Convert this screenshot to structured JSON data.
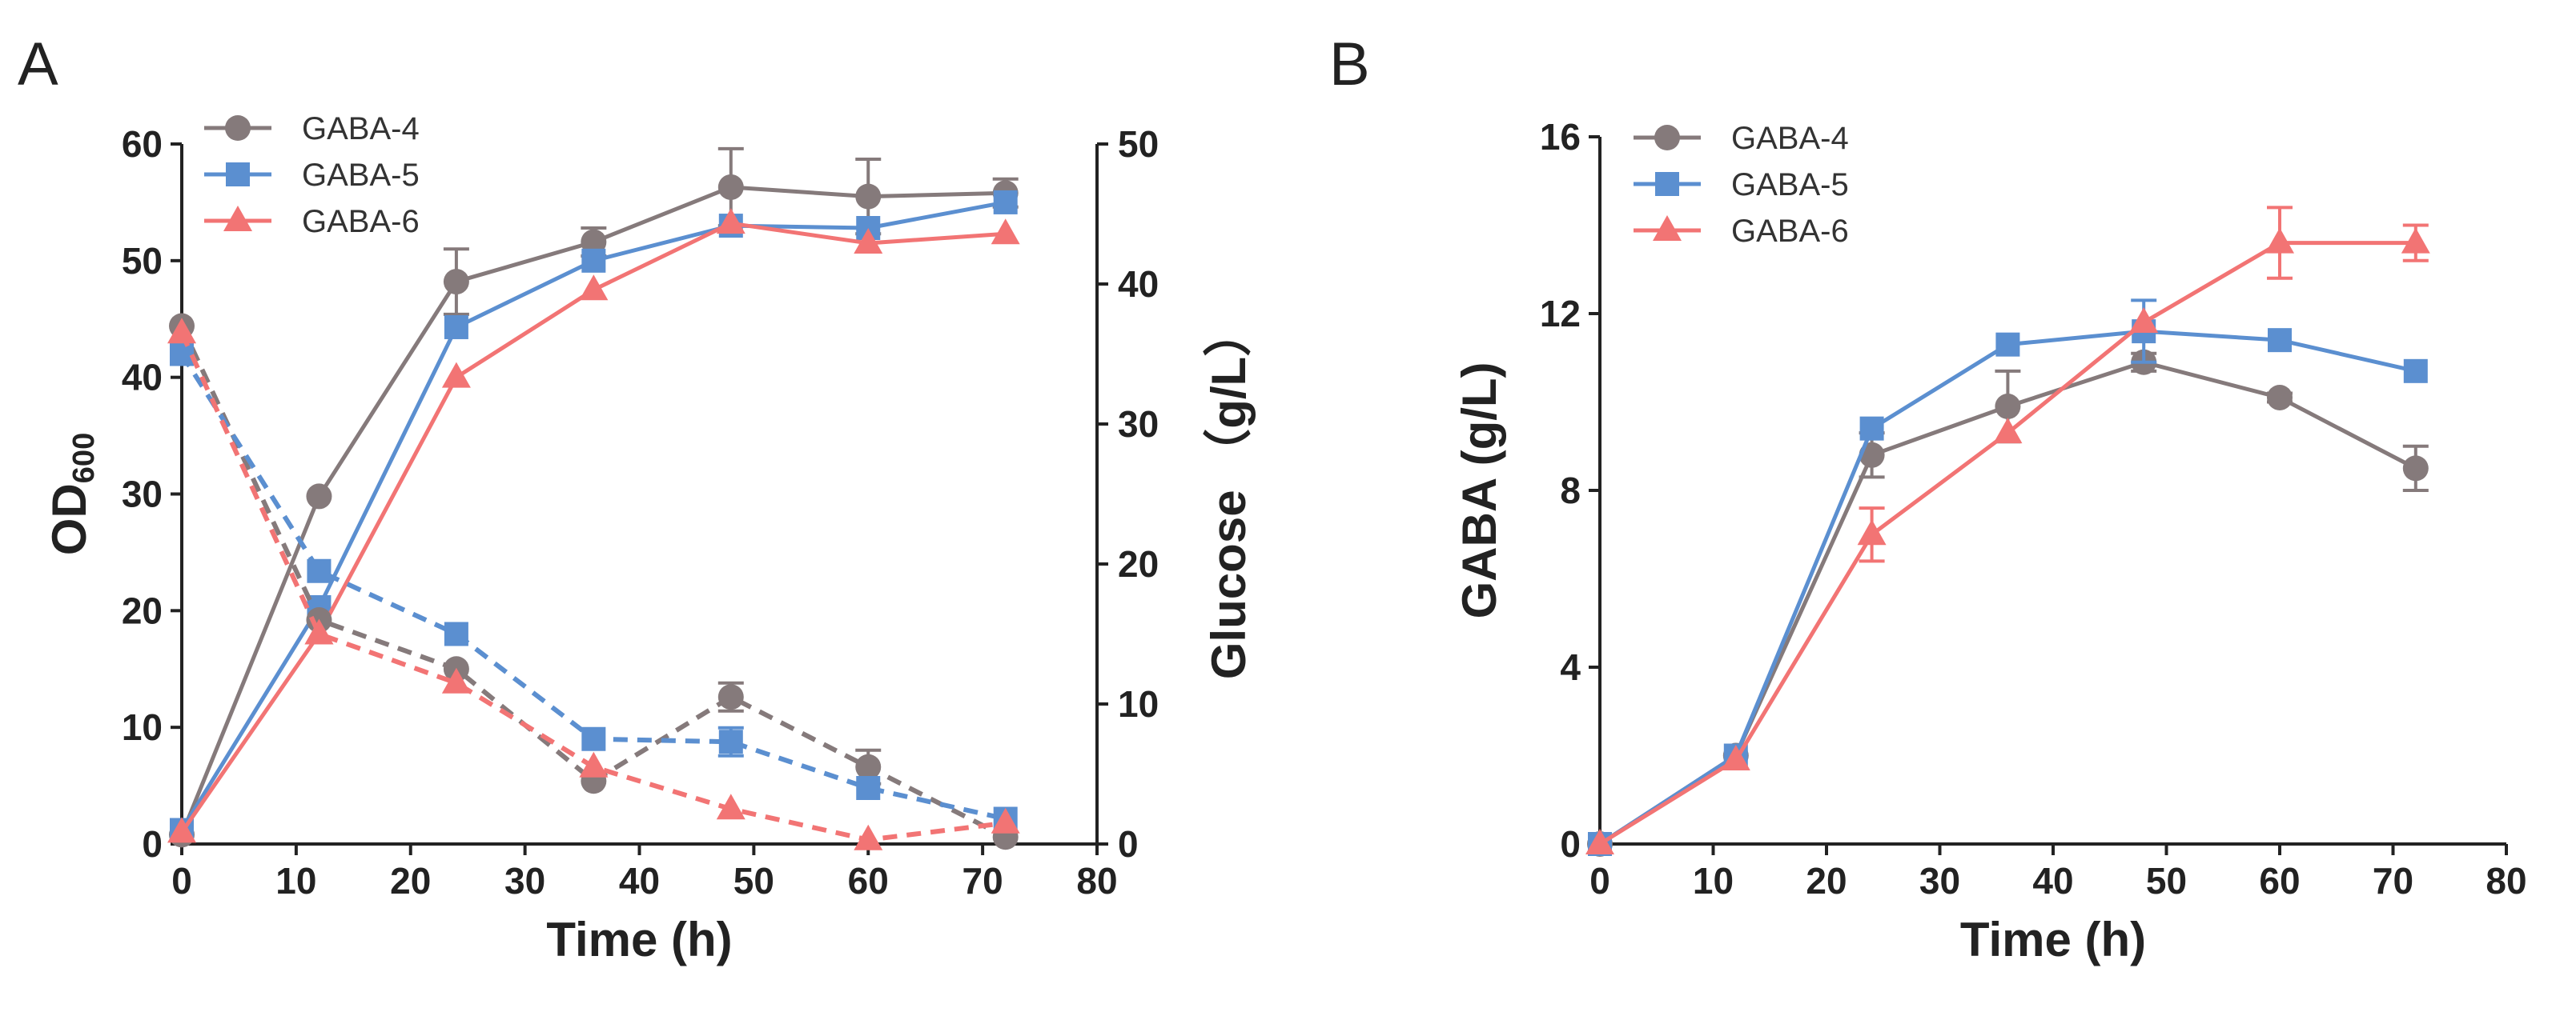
{
  "chart_data": [
    {
      "panel": "A",
      "type": "line",
      "xlabel": "Time (h)",
      "ylabel_main": "OD",
      "ylabel_sub": "600",
      "y2label": "Glucose （g/L）",
      "xlim": [
        0,
        80
      ],
      "ylim": [
        0,
        60
      ],
      "y2lim": [
        0,
        50
      ],
      "xticks": [
        "0",
        "10",
        "20",
        "30",
        "40",
        "50",
        "60",
        "70",
        "80"
      ],
      "yticks": [
        "0",
        "10",
        "20",
        "30",
        "40",
        "50",
        "60"
      ],
      "y2ticks": [
        "0",
        "10",
        "20",
        "30",
        "40",
        "50"
      ],
      "legend_position": "top-left",
      "series": [
        {
          "name": "GABA-4",
          "marker": "circle",
          "color": "#857a7b",
          "axis": "left",
          "dash": false,
          "x": [
            0,
            12,
            24,
            36,
            48,
            60,
            72
          ],
          "values": [
            0.8,
            29.8,
            48.2,
            51.6,
            56.3,
            55.5,
            55.8
          ],
          "errors": [
            0,
            0,
            2.8,
            1.2,
            3.3,
            3.2,
            1.2
          ]
        },
        {
          "name": "GABA-5",
          "marker": "square",
          "color": "#5b8fd0",
          "axis": "left",
          "dash": false,
          "x": [
            0,
            12,
            24,
            36,
            48,
            60,
            72
          ],
          "values": [
            1.2,
            20.3,
            44.3,
            50.0,
            53.0,
            52.8,
            55.0
          ],
          "errors": [
            0,
            0,
            0,
            0,
            0,
            0,
            0
          ]
        },
        {
          "name": "GABA-6",
          "marker": "triangle",
          "color": "#f27474",
          "axis": "left",
          "dash": false,
          "x": [
            0,
            12,
            24,
            36,
            48,
            60,
            72
          ],
          "values": [
            1.0,
            18.0,
            40.0,
            47.5,
            53.2,
            51.5,
            52.3
          ],
          "errors": [
            0,
            0,
            0,
            0,
            0,
            0,
            0
          ]
        },
        {
          "name": "GABA-4 glucose",
          "marker": "circle",
          "color": "#857a7b",
          "axis": "right",
          "dash": true,
          "x": [
            0,
            12,
            24,
            36,
            48,
            60,
            72
          ],
          "values": [
            37.0,
            16.0,
            12.5,
            4.5,
            10.5,
            5.5,
            0.5
          ],
          "errors": [
            0,
            0,
            0,
            0,
            1.0,
            1.2,
            0
          ]
        },
        {
          "name": "GABA-5 glucose",
          "marker": "square",
          "color": "#5b8fd0",
          "axis": "right",
          "dash": true,
          "x": [
            0,
            12,
            24,
            36,
            48,
            60,
            72
          ],
          "values": [
            35.0,
            19.5,
            15.0,
            7.5,
            7.3,
            4.0,
            1.8
          ],
          "errors": [
            0,
            0,
            0,
            0,
            1.0,
            0,
            0
          ]
        },
        {
          "name": "GABA-6 glucose",
          "marker": "triangle",
          "color": "#f27474",
          "axis": "right",
          "dash": true,
          "x": [
            0,
            12,
            24,
            36,
            48,
            60,
            72
          ],
          "values": [
            36.5,
            15.0,
            11.5,
            5.5,
            2.5,
            0.3,
            1.5
          ],
          "errors": [
            0,
            0,
            0,
            0,
            0,
            0,
            0
          ]
        }
      ]
    },
    {
      "panel": "B",
      "type": "line",
      "xlabel": "Time (h)",
      "ylabel": "GABA (g/L)",
      "xlim": [
        0,
        80
      ],
      "ylim": [
        0,
        16
      ],
      "xticks": [
        "0",
        "10",
        "20",
        "30",
        "40",
        "50",
        "60",
        "70",
        "80"
      ],
      "yticks": [
        "0",
        "4",
        "8",
        "12",
        "16"
      ],
      "legend_position": "top-left",
      "series": [
        {
          "name": "GABA-4",
          "marker": "circle",
          "color": "#857a7b",
          "dash": false,
          "x": [
            0,
            12,
            24,
            36,
            48,
            60,
            72
          ],
          "values": [
            0,
            2.0,
            8.8,
            9.9,
            10.9,
            10.1,
            8.5
          ],
          "errors": [
            0,
            0,
            0.5,
            0.8,
            0.2,
            0.1,
            0.5
          ]
        },
        {
          "name": "GABA-5",
          "marker": "square",
          "color": "#5b8fd0",
          "dash": false,
          "x": [
            0,
            12,
            24,
            36,
            48,
            60,
            72
          ],
          "values": [
            0,
            2.0,
            9.4,
            11.3,
            11.6,
            11.4,
            10.7
          ],
          "errors": [
            0,
            0,
            0,
            0,
            0.7,
            0,
            0
          ]
        },
        {
          "name": "GABA-6",
          "marker": "triangle",
          "color": "#f27474",
          "dash": false,
          "x": [
            0,
            12,
            24,
            36,
            48,
            60,
            72
          ],
          "values": [
            0,
            1.9,
            7.0,
            9.3,
            11.8,
            13.6,
            13.6
          ],
          "errors": [
            0,
            0,
            0.6,
            0,
            0,
            0.8,
            0.4
          ]
        }
      ]
    }
  ]
}
